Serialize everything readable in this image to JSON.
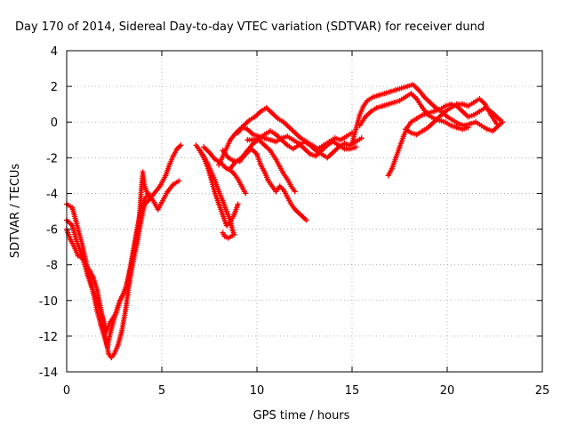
{
  "chart_data": {
    "type": "scatter",
    "title": "Day 170 of 2014, Sidereal Day-to-day VTEC variation (SDTVAR) for receiver dund",
    "xlabel": "GPS time / hours",
    "ylabel": "SDTVAR / TECUs",
    "xlim": [
      0,
      25
    ],
    "ylim": [
      -14,
      4
    ],
    "xticks": [
      0,
      5,
      10,
      15,
      20,
      25
    ],
    "yticks": [
      -14,
      -12,
      -10,
      -8,
      -6,
      -4,
      -2,
      0,
      2,
      4
    ],
    "grid": true,
    "marker": "plus",
    "color": "#ff0000",
    "series": [
      {
        "points": [
          [
            0.0,
            -4.6
          ],
          [
            0.3,
            -4.8
          ],
          [
            0.5,
            -5.6
          ],
          [
            0.8,
            -6.8
          ],
          [
            1.1,
            -8.2
          ],
          [
            1.4,
            -9.6
          ],
          [
            1.6,
            -10.6
          ],
          [
            1.8,
            -11.4
          ],
          [
            2.0,
            -12.1
          ],
          [
            2.15,
            -12.6
          ],
          [
            2.3,
            -11.8
          ],
          [
            2.5,
            -11.0
          ],
          [
            2.7,
            -10.3
          ],
          [
            2.9,
            -9.8
          ],
          [
            3.1,
            -9.3
          ],
          [
            3.3,
            -8.4
          ],
          [
            3.5,
            -7.2
          ],
          [
            3.7,
            -6.0
          ],
          [
            3.9,
            -5.0
          ],
          [
            4.1,
            -4.3
          ],
          [
            4.3,
            -4.0
          ],
          [
            4.6,
            -4.5
          ],
          [
            4.8,
            -4.9
          ],
          [
            5.0,
            -4.5
          ],
          [
            5.3,
            -3.9
          ],
          [
            5.6,
            -3.5
          ],
          [
            5.9,
            -3.3
          ]
        ]
      },
      {
        "points": [
          [
            0.0,
            -6.0
          ],
          [
            0.2,
            -6.6
          ],
          [
            0.4,
            -7.0
          ],
          [
            0.6,
            -7.5
          ],
          [
            0.8,
            -7.6
          ],
          [
            1.0,
            -8.0
          ],
          [
            1.2,
            -8.3
          ],
          [
            1.4,
            -8.7
          ],
          [
            1.6,
            -9.4
          ],
          [
            1.8,
            -10.5
          ],
          [
            2.0,
            -11.8
          ],
          [
            2.2,
            -13.0
          ],
          [
            2.35,
            -13.2
          ],
          [
            2.5,
            -13.0
          ],
          [
            2.7,
            -12.5
          ],
          [
            2.9,
            -11.7
          ],
          [
            3.1,
            -10.5
          ],
          [
            3.3,
            -9.0
          ],
          [
            3.5,
            -7.8
          ],
          [
            3.7,
            -6.8
          ],
          [
            3.9,
            -5.6
          ],
          [
            4.1,
            -4.6
          ],
          [
            4.3,
            -4.4
          ],
          [
            4.6,
            -4.0
          ],
          [
            4.9,
            -3.6
          ],
          [
            5.2,
            -3.0
          ],
          [
            5.4,
            -2.4
          ],
          [
            5.6,
            -1.9
          ],
          [
            5.8,
            -1.5
          ],
          [
            6.0,
            -1.3
          ]
        ]
      },
      {
        "points": [
          [
            0.0,
            -5.5
          ],
          [
            0.3,
            -5.8
          ],
          [
            0.5,
            -6.6
          ],
          [
            0.7,
            -7.2
          ],
          [
            0.9,
            -7.8
          ],
          [
            1.1,
            -8.6
          ],
          [
            1.3,
            -9.2
          ],
          [
            1.6,
            -10.0
          ],
          [
            1.9,
            -11.0
          ],
          [
            2.1,
            -11.7
          ],
          [
            2.3,
            -11.2
          ],
          [
            2.6,
            -10.7
          ],
          [
            2.8,
            -10.0
          ],
          [
            3.0,
            -9.6
          ],
          [
            3.2,
            -9.0
          ],
          [
            3.4,
            -8.0
          ],
          [
            3.6,
            -6.8
          ],
          [
            3.8,
            -5.6
          ],
          [
            3.95,
            -3.4
          ],
          [
            4.0,
            -2.8
          ],
          [
            4.1,
            -3.6
          ],
          [
            4.3,
            -4.2
          ]
        ]
      },
      {
        "points": [
          [
            6.8,
            -1.3
          ],
          [
            7.0,
            -1.6
          ],
          [
            7.2,
            -2.0
          ],
          [
            7.4,
            -2.5
          ],
          [
            7.6,
            -3.2
          ],
          [
            7.8,
            -4.0
          ],
          [
            8.0,
            -4.6
          ],
          [
            8.2,
            -5.2
          ],
          [
            8.4,
            -5.8
          ],
          [
            8.6,
            -5.6
          ],
          [
            8.8,
            -5.2
          ],
          [
            9.0,
            -4.6
          ]
        ]
      },
      {
        "points": [
          [
            7.0,
            -1.6
          ],
          [
            7.2,
            -1.9
          ],
          [
            7.4,
            -2.3
          ],
          [
            7.6,
            -2.8
          ],
          [
            7.8,
            -3.3
          ],
          [
            8.0,
            -3.9
          ],
          [
            8.2,
            -4.4
          ],
          [
            8.4,
            -5.0
          ],
          [
            8.6,
            -5.5
          ],
          [
            8.7,
            -6.0
          ],
          [
            8.8,
            -6.3
          ],
          [
            8.5,
            -6.5
          ],
          [
            8.3,
            -6.4
          ],
          [
            8.2,
            -6.2
          ]
        ]
      },
      {
        "points": [
          [
            7.2,
            -1.4
          ],
          [
            7.5,
            -1.7
          ],
          [
            7.8,
            -2.1
          ],
          [
            8.0,
            -2.2
          ],
          [
            8.2,
            -2.4
          ],
          [
            8.4,
            -2.6
          ],
          [
            8.6,
            -2.7
          ],
          [
            8.8,
            -2.9
          ],
          [
            9.0,
            -3.2
          ],
          [
            9.2,
            -3.6
          ],
          [
            9.4,
            -4.0
          ]
        ]
      },
      {
        "points": [
          [
            8.2,
            -1.6
          ],
          [
            8.5,
            -2.0
          ],
          [
            8.8,
            -2.2
          ],
          [
            9.1,
            -2.2
          ],
          [
            9.4,
            -1.8
          ],
          [
            9.7,
            -1.5
          ],
          [
            10.0,
            -1.8
          ],
          [
            10.2,
            -2.4
          ],
          [
            10.4,
            -2.8
          ],
          [
            10.6,
            -3.3
          ],
          [
            10.8,
            -3.6
          ],
          [
            11.0,
            -3.9
          ],
          [
            11.2,
            -3.6
          ],
          [
            11.4,
            -3.8
          ],
          [
            11.6,
            -4.2
          ],
          [
            11.8,
            -4.6
          ],
          [
            12.0,
            -4.9
          ],
          [
            12.3,
            -5.2
          ],
          [
            12.6,
            -5.5
          ]
        ]
      },
      {
        "points": [
          [
            8.6,
            -2.6
          ],
          [
            8.9,
            -2.2
          ],
          [
            9.2,
            -2.0
          ],
          [
            9.5,
            -1.6
          ],
          [
            9.8,
            -1.2
          ],
          [
            10.1,
            -1.0
          ],
          [
            10.4,
            -1.3
          ],
          [
            10.7,
            -1.6
          ],
          [
            11.0,
            -2.1
          ],
          [
            11.2,
            -2.5
          ],
          [
            11.4,
            -2.9
          ],
          [
            11.6,
            -3.2
          ],
          [
            11.8,
            -3.6
          ],
          [
            12.0,
            -3.9
          ]
        ]
      },
      {
        "points": [
          [
            8.0,
            -2.4
          ],
          [
            8.3,
            -1.7
          ],
          [
            8.6,
            -1.0
          ],
          [
            8.9,
            -0.6
          ],
          [
            9.2,
            -0.3
          ],
          [
            9.5,
            -0.4
          ],
          [
            9.8,
            -0.7
          ],
          [
            10.1,
            -0.8
          ],
          [
            10.4,
            -0.9
          ],
          [
            10.7,
            -1.0
          ],
          [
            11.0,
            -1.1
          ],
          [
            11.3,
            -0.9
          ],
          [
            11.6,
            -0.8
          ],
          [
            11.9,
            -1.0
          ],
          [
            12.2,
            -1.2
          ],
          [
            12.5,
            -1.5
          ],
          [
            12.8,
            -1.8
          ],
          [
            13.1,
            -1.9
          ],
          [
            13.4,
            -1.6
          ],
          [
            13.7,
            -1.3
          ],
          [
            14.0,
            -1.1
          ],
          [
            14.3,
            -1.3
          ],
          [
            14.6,
            -1.5
          ],
          [
            14.9,
            -1.5
          ],
          [
            15.2,
            -1.4
          ]
        ]
      },
      {
        "points": [
          [
            9.0,
            -0.6
          ],
          [
            9.3,
            -0.2
          ],
          [
            9.6,
            0.1
          ],
          [
            9.9,
            0.3
          ],
          [
            10.2,
            0.6
          ],
          [
            10.5,
            0.8
          ],
          [
            10.8,
            0.5
          ],
          [
            11.1,
            0.2
          ],
          [
            11.4,
            0.0
          ],
          [
            11.7,
            -0.3
          ],
          [
            12.0,
            -0.6
          ],
          [
            12.3,
            -0.9
          ],
          [
            12.6,
            -1.1
          ],
          [
            12.9,
            -1.3
          ],
          [
            13.2,
            -1.5
          ],
          [
            13.5,
            -1.3
          ],
          [
            13.8,
            -1.1
          ],
          [
            14.1,
            -0.9
          ],
          [
            14.4,
            -1.0
          ],
          [
            14.7,
            -0.8
          ],
          [
            15.0,
            -0.6
          ]
        ]
      },
      {
        "points": [
          [
            9.5,
            -1.0
          ],
          [
            9.8,
            -1.0
          ],
          [
            10.1,
            -0.9
          ],
          [
            10.4,
            -0.7
          ],
          [
            10.7,
            -0.5
          ],
          [
            11.0,
            -0.7
          ],
          [
            11.3,
            -1.0
          ],
          [
            11.6,
            -1.3
          ],
          [
            11.9,
            -1.5
          ],
          [
            12.2,
            -1.3
          ],
          [
            12.5,
            -1.1
          ],
          [
            12.8,
            -1.3
          ],
          [
            13.1,
            -1.6
          ],
          [
            13.4,
            -1.8
          ],
          [
            13.7,
            -2.0
          ],
          [
            14.0,
            -1.7
          ],
          [
            14.3,
            -1.4
          ],
          [
            14.6,
            -1.2
          ],
          [
            14.9,
            -1.3
          ],
          [
            15.2,
            -1.1
          ],
          [
            15.5,
            -0.9
          ]
        ]
      },
      {
        "points": [
          [
            15.0,
            -1.2
          ],
          [
            15.2,
            -0.4
          ],
          [
            15.4,
            0.4
          ],
          [
            15.6,
            0.9
          ],
          [
            15.8,
            1.2
          ],
          [
            16.1,
            1.4
          ],
          [
            16.4,
            1.5
          ],
          [
            16.7,
            1.6
          ],
          [
            17.0,
            1.7
          ],
          [
            17.3,
            1.8
          ],
          [
            17.6,
            1.9
          ],
          [
            17.9,
            2.0
          ],
          [
            18.2,
            2.1
          ],
          [
            18.5,
            1.8
          ],
          [
            18.8,
            1.4
          ],
          [
            19.1,
            1.1
          ],
          [
            19.4,
            0.8
          ],
          [
            19.7,
            0.6
          ],
          [
            20.0,
            0.3
          ],
          [
            20.3,
            0.1
          ],
          [
            20.6,
            -0.1
          ],
          [
            20.9,
            -0.2
          ],
          [
            21.2,
            -0.1
          ],
          [
            21.5,
            0.0
          ],
          [
            21.8,
            -0.2
          ],
          [
            22.1,
            -0.4
          ],
          [
            22.4,
            -0.5
          ],
          [
            22.7,
            -0.2
          ],
          [
            22.9,
            0.0
          ]
        ]
      },
      {
        "points": [
          [
            15.4,
            -0.2
          ],
          [
            15.7,
            0.3
          ],
          [
            16.0,
            0.6
          ],
          [
            16.3,
            0.8
          ],
          [
            16.6,
            0.9
          ],
          [
            16.9,
            1.0
          ],
          [
            17.2,
            1.1
          ],
          [
            17.5,
            1.2
          ],
          [
            17.8,
            1.4
          ],
          [
            18.1,
            1.6
          ],
          [
            18.4,
            1.3
          ],
          [
            18.7,
            0.8
          ],
          [
            19.0,
            0.4
          ],
          [
            19.3,
            0.2
          ],
          [
            19.6,
            0.1
          ],
          [
            19.9,
            0.0
          ],
          [
            20.2,
            -0.2
          ],
          [
            20.5,
            -0.3
          ],
          [
            20.8,
            -0.4
          ],
          [
            21.1,
            -0.3
          ]
        ]
      },
      {
        "points": [
          [
            16.9,
            -3.0
          ],
          [
            17.1,
            -2.6
          ],
          [
            17.3,
            -2.0
          ],
          [
            17.5,
            -1.4
          ],
          [
            17.7,
            -0.8
          ],
          [
            17.9,
            -0.3
          ],
          [
            18.1,
            0.0
          ],
          [
            18.4,
            0.2
          ],
          [
            18.7,
            0.4
          ],
          [
            19.0,
            0.5
          ],
          [
            19.3,
            0.6
          ],
          [
            19.6,
            0.7
          ],
          [
            19.9,
            0.9
          ],
          [
            20.2,
            1.0
          ],
          [
            20.5,
            0.9
          ],
          [
            20.8,
            0.6
          ],
          [
            21.1,
            0.3
          ],
          [
            21.4,
            0.4
          ],
          [
            21.7,
            0.6
          ],
          [
            22.0,
            0.8
          ],
          [
            22.3,
            0.6
          ],
          [
            22.6,
            0.3
          ],
          [
            22.8,
            0.1
          ]
        ]
      },
      {
        "points": [
          [
            17.8,
            -0.4
          ],
          [
            18.1,
            -0.6
          ],
          [
            18.4,
            -0.7
          ],
          [
            18.7,
            -0.5
          ],
          [
            19.0,
            -0.3
          ],
          [
            19.3,
            0.0
          ],
          [
            19.6,
            0.3
          ],
          [
            19.9,
            0.6
          ],
          [
            20.2,
            0.8
          ],
          [
            20.5,
            1.0
          ],
          [
            20.8,
            1.0
          ],
          [
            21.1,
            0.9
          ],
          [
            21.4,
            1.1
          ],
          [
            21.7,
            1.3
          ],
          [
            22.0,
            1.0
          ],
          [
            22.3,
            0.4
          ],
          [
            22.6,
            -0.1
          ]
        ]
      }
    ]
  }
}
